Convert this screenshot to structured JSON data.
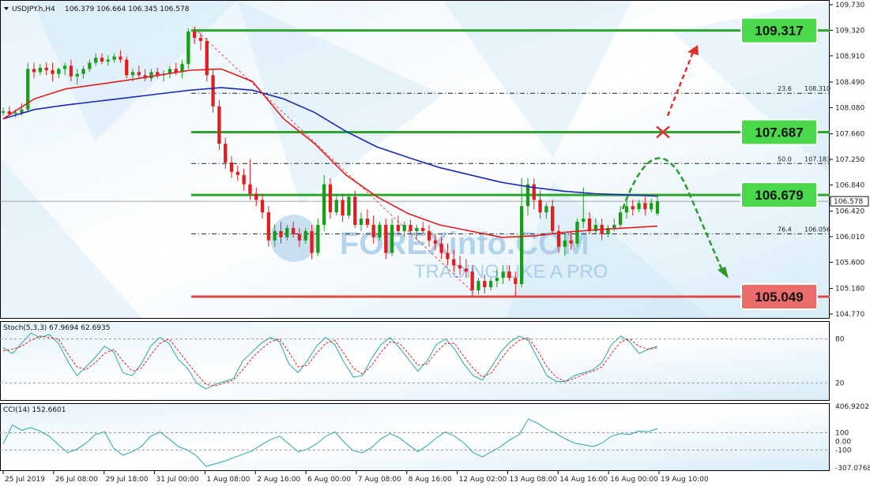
{
  "header": {
    "symbol_label": "USDJPY.h,H4",
    "ohlc": "106.379 106.664 106.345 106.578"
  },
  "watermark": {
    "brand": "FOREXinfo.COM",
    "tagline": "TRADING LIKE A PRO"
  },
  "colors": {
    "bull_candle": "#1a9c1a",
    "bear_candle": "#e01e1e",
    "ema_fast": "#e31b1b",
    "ema_slow": "#1c2ab8",
    "support_resistance": "#2ca52c",
    "target_low": "#e04848",
    "green_label_bg": "#4cd84c",
    "red_label_bg": "#ec6b6b",
    "stoch_main": "#2aa6a6",
    "stoch_signal": "#e01e1e",
    "cci_line": "#2aa6a6"
  },
  "price_axis": {
    "ticks": [
      "109.730",
      "109.320",
      "108.910",
      "108.490",
      "108.080",
      "107.660",
      "107.250",
      "106.840",
      "106.420",
      "106.010",
      "105.600",
      "105.180",
      "104.770"
    ],
    "current_price": "106.578"
  },
  "time_axis": {
    "labels": [
      "25 Jul 2019",
      "26 Jul 08:00",
      "29 Jul 18:00",
      "31 Jul 00:00",
      "1 Aug 08:00",
      "2 Aug 16:00",
      "6 Aug 00:00",
      "7 Aug 08:00",
      "8 Aug 16:00",
      "12 Aug 02:00",
      "13 Aug 08:00",
      "14 Aug 16:00",
      "16 Aug 00:00",
      "19 Aug 10:00"
    ]
  },
  "levels": [
    {
      "price": "109.317",
      "color": "green"
    },
    {
      "price": "107.687",
      "color": "green"
    },
    {
      "price": "106.679",
      "color": "green"
    },
    {
      "price": "105.049",
      "color": "red"
    }
  ],
  "fibonacci": [
    {
      "ratio": "23.6",
      "price": "108.310"
    },
    {
      "ratio": "50.0",
      "price": "107.183"
    },
    {
      "ratio": "76.4",
      "price": "106.056"
    }
  ],
  "stochastic": {
    "label": "Stoch(5,3,3) 67.9694 62.6935",
    "ticks": [
      "80",
      "20"
    ]
  },
  "cci": {
    "label": "CCI(14) 152.6601",
    "ticks": [
      "406.9202",
      "100",
      "0.00",
      "-100",
      "-307.0768"
    ]
  },
  "chart_data": {
    "type": "candlestick",
    "instrument": "USDJPY",
    "timeframe": "H4",
    "ylim": [
      104.77,
      109.73
    ],
    "candles": [
      [
        108.0,
        108.08,
        107.95,
        108.02
      ],
      [
        108.02,
        108.1,
        107.95,
        107.98
      ],
      [
        107.98,
        108.05,
        107.92,
        108.0
      ],
      [
        108.0,
        108.15,
        107.95,
        108.05
      ],
      [
        108.05,
        108.8,
        108.0,
        108.7
      ],
      [
        108.7,
        108.8,
        108.55,
        108.65
      ],
      [
        108.65,
        108.78,
        108.6,
        108.72
      ],
      [
        108.72,
        108.8,
        108.6,
        108.68
      ],
      [
        108.68,
        108.8,
        108.5,
        108.62
      ],
      [
        108.62,
        108.72,
        108.55,
        108.7
      ],
      [
        108.7,
        108.8,
        108.6,
        108.75
      ],
      [
        108.75,
        108.85,
        108.5,
        108.58
      ],
      [
        108.58,
        108.7,
        108.45,
        108.62
      ],
      [
        108.62,
        108.75,
        108.55,
        108.7
      ],
      [
        108.7,
        108.85,
        108.65,
        108.8
      ],
      [
        108.8,
        108.95,
        108.75,
        108.88
      ],
      [
        108.88,
        108.95,
        108.78,
        108.82
      ],
      [
        108.82,
        108.92,
        108.75,
        108.85
      ],
      [
        108.85,
        108.95,
        108.8,
        108.9
      ],
      [
        108.9,
        109.0,
        108.8,
        108.85
      ],
      [
        108.85,
        108.9,
        108.55,
        108.6
      ],
      [
        108.6,
        108.7,
        108.5,
        108.65
      ],
      [
        108.65,
        108.75,
        108.55,
        108.6
      ],
      [
        108.6,
        108.7,
        108.5,
        108.55
      ],
      [
        108.55,
        108.7,
        108.5,
        108.65
      ],
      [
        108.65,
        108.72,
        108.55,
        108.6
      ],
      [
        108.6,
        108.68,
        108.5,
        108.62
      ],
      [
        108.62,
        108.75,
        108.55,
        108.7
      ],
      [
        108.7,
        108.8,
        108.6,
        108.65
      ],
      [
        108.65,
        108.85,
        108.55,
        108.78
      ],
      [
        108.78,
        109.35,
        108.7,
        109.3
      ],
      [
        109.3,
        109.38,
        109.1,
        109.2
      ],
      [
        109.2,
        109.28,
        109.0,
        109.15
      ],
      [
        109.15,
        109.2,
        108.5,
        108.6
      ],
      [
        108.6,
        108.7,
        108.0,
        108.1
      ],
      [
        108.1,
        108.2,
        107.4,
        107.5
      ],
      [
        107.5,
        107.6,
        107.1,
        107.2
      ],
      [
        107.2,
        107.3,
        106.95,
        107.05
      ],
      [
        107.05,
        107.15,
        106.9,
        107.0
      ],
      [
        107.0,
        107.1,
        106.75,
        106.85
      ],
      [
        106.85,
        107.25,
        106.6,
        106.7
      ],
      [
        106.7,
        106.8,
        106.5,
        106.6
      ],
      [
        106.6,
        106.7,
        106.3,
        106.4
      ],
      [
        106.4,
        106.5,
        105.85,
        105.95
      ],
      [
        105.95,
        106.2,
        105.85,
        106.1
      ],
      [
        106.1,
        106.25,
        105.9,
        106.0
      ],
      [
        106.0,
        106.2,
        105.95,
        106.15
      ],
      [
        106.15,
        106.25,
        106.0,
        106.05
      ],
      [
        106.05,
        106.15,
        105.85,
        105.95
      ],
      [
        105.95,
        106.15,
        105.9,
        106.1
      ],
      [
        106.1,
        106.2,
        105.65,
        105.75
      ],
      [
        105.75,
        106.3,
        105.7,
        106.2
      ],
      [
        106.2,
        107.0,
        106.1,
        106.85
      ],
      [
        106.85,
        106.95,
        106.3,
        106.4
      ],
      [
        106.4,
        106.7,
        106.35,
        106.6
      ],
      [
        106.6,
        106.7,
        106.25,
        106.35
      ],
      [
        106.35,
        106.7,
        106.3,
        106.65
      ],
      [
        106.65,
        106.75,
        106.15,
        106.2
      ],
      [
        106.2,
        106.4,
        106.1,
        106.3
      ],
      [
        106.3,
        106.45,
        106.15,
        106.2
      ],
      [
        106.2,
        106.35,
        105.9,
        106.0
      ],
      [
        106.0,
        106.25,
        105.95,
        106.2
      ],
      [
        106.2,
        106.3,
        105.65,
        105.75
      ],
      [
        105.75,
        106.3,
        105.7,
        106.2
      ],
      [
        106.2,
        106.35,
        106.05,
        106.1
      ],
      [
        106.1,
        106.25,
        106.0,
        106.2
      ],
      [
        106.2,
        106.28,
        106.05,
        106.1
      ],
      [
        106.1,
        106.2,
        105.95,
        106.15
      ],
      [
        106.15,
        106.25,
        106.05,
        106.1
      ],
      [
        106.1,
        106.2,
        105.85,
        105.95
      ],
      [
        105.95,
        106.05,
        105.8,
        105.9
      ],
      [
        105.9,
        106.0,
        105.65,
        105.75
      ],
      [
        105.75,
        105.9,
        105.55,
        105.65
      ],
      [
        105.65,
        105.8,
        105.45,
        105.55
      ],
      [
        105.55,
        105.7,
        105.4,
        105.5
      ],
      [
        105.5,
        105.65,
        105.35,
        105.45
      ],
      [
        105.45,
        105.55,
        105.05,
        105.15
      ],
      [
        105.15,
        105.35,
        105.08,
        105.3
      ],
      [
        105.3,
        105.4,
        105.1,
        105.2
      ],
      [
        105.2,
        105.35,
        105.15,
        105.3
      ],
      [
        105.3,
        105.5,
        105.2,
        105.35
      ],
      [
        105.35,
        105.55,
        105.25,
        105.45
      ],
      [
        105.45,
        105.55,
        105.3,
        105.35
      ],
      [
        105.35,
        105.45,
        105.05,
        105.25
      ],
      [
        105.25,
        106.95,
        105.2,
        106.5
      ],
      [
        106.5,
        106.95,
        106.35,
        106.85
      ],
      [
        106.85,
        106.95,
        106.45,
        106.6
      ],
      [
        106.6,
        106.75,
        106.3,
        106.4
      ],
      [
        106.4,
        106.55,
        106.3,
        106.5
      ],
      [
        106.5,
        106.6,
        106.05,
        106.1
      ],
      [
        106.1,
        106.2,
        105.75,
        105.85
      ],
      [
        105.85,
        106.05,
        105.7,
        105.95
      ],
      [
        105.95,
        106.1,
        105.8,
        105.9
      ],
      [
        105.9,
        106.3,
        105.85,
        106.25
      ],
      [
        106.25,
        106.8,
        106.15,
        106.3
      ],
      [
        106.3,
        106.4,
        106.05,
        106.1
      ],
      [
        106.1,
        106.3,
        106.05,
        106.2
      ],
      [
        106.2,
        106.3,
        105.95,
        106.05
      ],
      [
        106.05,
        106.2,
        106.0,
        106.15
      ],
      [
        106.15,
        106.3,
        106.1,
        106.2
      ],
      [
        106.2,
        106.5,
        106.15,
        106.4
      ],
      [
        106.4,
        106.6,
        106.3,
        106.5
      ],
      [
        106.5,
        106.6,
        106.35,
        106.45
      ],
      [
        106.45,
        106.6,
        106.4,
        106.55
      ],
      [
        106.55,
        106.65,
        106.35,
        106.45
      ],
      [
        106.45,
        106.62,
        106.4,
        106.55
      ],
      [
        106.38,
        106.664,
        106.345,
        106.578
      ]
    ],
    "ema_fast": [
      107.9,
      108.22,
      108.38,
      108.45,
      108.52,
      108.6,
      108.68,
      108.7,
      108.5,
      107.9,
      107.5,
      107.0,
      106.65,
      106.38,
      106.2,
      106.1,
      106.0,
      106.02,
      106.08,
      106.12,
      106.15,
      106.18
    ],
    "ema_slow": [
      107.9,
      108.05,
      108.12,
      108.18,
      108.24,
      108.3,
      108.36,
      108.4,
      108.36,
      108.22,
      108.0,
      107.7,
      107.45,
      107.28,
      107.12,
      107.0,
      106.88,
      106.8,
      106.74,
      106.7,
      106.68,
      106.66
    ],
    "stochastic_main": [
      68,
      60,
      74,
      88,
      82,
      86,
      74,
      50,
      30,
      42,
      55,
      70,
      62,
      34,
      30,
      46,
      70,
      82,
      74,
      52,
      40,
      20,
      12,
      18,
      22,
      26,
      50,
      62,
      74,
      82,
      76,
      46,
      34,
      50,
      70,
      82,
      72,
      48,
      28,
      30,
      54,
      72,
      82,
      68,
      52,
      36,
      50,
      72,
      80,
      66,
      46,
      30,
      24,
      42,
      62,
      76,
      84,
      78,
      54,
      30,
      22,
      22,
      30,
      34,
      38,
      48,
      72,
      84,
      76,
      60,
      66,
      70
    ],
    "stochastic_signal": [
      64,
      66,
      70,
      78,
      84,
      82,
      80,
      60,
      42,
      38,
      48,
      60,
      66,
      50,
      36,
      40,
      58,
      74,
      80,
      64,
      48,
      32,
      18,
      16,
      20,
      24,
      38,
      54,
      66,
      76,
      80,
      62,
      42,
      44,
      60,
      74,
      78,
      60,
      40,
      32,
      44,
      62,
      76,
      74,
      60,
      44,
      46,
      62,
      74,
      74,
      56,
      40,
      28,
      34,
      52,
      68,
      78,
      82,
      64,
      42,
      28,
      22,
      26,
      32,
      36,
      42,
      60,
      76,
      80,
      70,
      66,
      68
    ],
    "cci_values": [
      -30,
      190,
      130,
      160,
      120,
      60,
      -40,
      -130,
      -90,
      -20,
      80,
      110,
      -80,
      -160,
      -120,
      -60,
      60,
      110,
      30,
      -60,
      -100,
      -170,
      -290,
      -260,
      -230,
      -190,
      -150,
      -110,
      -40,
      20,
      60,
      -30,
      -120,
      -90,
      -30,
      60,
      110,
      -10,
      -110,
      -130,
      -70,
      30,
      90,
      40,
      -40,
      -120,
      -50,
      40,
      110,
      60,
      -20,
      -130,
      -180,
      -120,
      -60,
      20,
      80,
      260,
      210,
      140,
      90,
      30,
      -20,
      -40,
      -60,
      -20,
      60,
      90,
      80,
      120,
      110,
      150
    ]
  }
}
